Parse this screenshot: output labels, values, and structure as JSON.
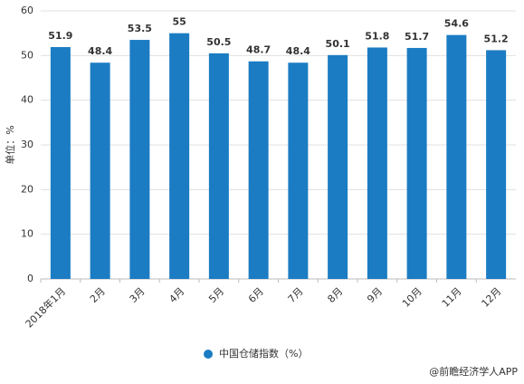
{
  "chart_data": {
    "type": "bar",
    "y_label": "单位：%",
    "categories": [
      "2018年1月",
      "2月",
      "3月",
      "4月",
      "5月",
      "6月",
      "7月",
      "8月",
      "9月",
      "10月",
      "11月",
      "12月"
    ],
    "series": [
      {
        "name": "中国仓储指数（%）",
        "color": "#1b7cc3",
        "values": [
          51.9,
          48.4,
          53.5,
          55,
          50.5,
          48.7,
          48.4,
          50.1,
          51.8,
          51.7,
          54.6,
          51.2
        ]
      }
    ],
    "ylim": [
      0,
      60
    ],
    "yticks": [
      0,
      10,
      20,
      30,
      40,
      50,
      60
    ],
    "grid": true,
    "legend": "bottom",
    "source": "@前瞻经济学人APP"
  }
}
